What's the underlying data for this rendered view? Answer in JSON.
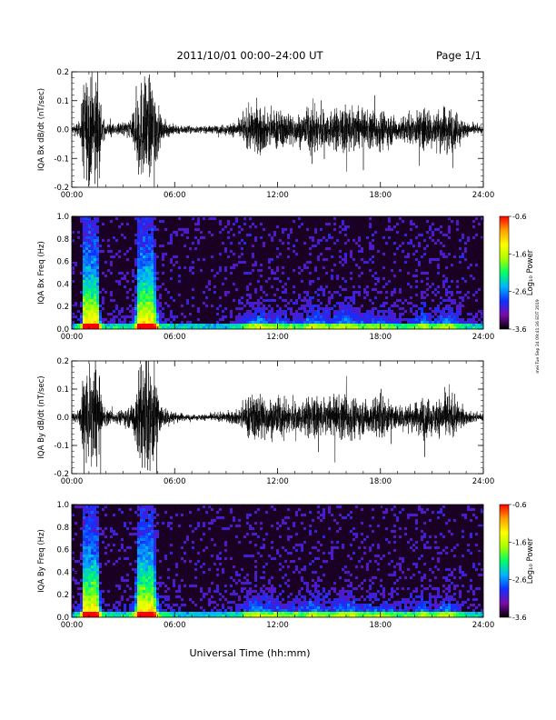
{
  "header": {
    "title": "2011/10/01   00:00–24:00 UT",
    "page": "Page 1/1"
  },
  "footer": {
    "xlabel": "Universal Time (hh:mm)",
    "side_note": "mei Tue Sep 24 09:41:36 EDT 2019"
  },
  "colors": {
    "trace": "#000000",
    "spectrum_background": "#1a0022",
    "colorbar": [
      "#000000",
      "#7a0aa8",
      "#1030ff",
      "#00b4ff",
      "#00ff64",
      "#aaff00",
      "#ffff00",
      "#ffa000",
      "#ff0000"
    ]
  },
  "chart_data": [
    {
      "type": "line",
      "ylabel": "IQA Bx dB/dt (nT/sec)",
      "x_ticks": [
        "00:00",
        "06:00",
        "12:00",
        "18:00",
        "24:00"
      ],
      "y_ticks": [
        "-0.2",
        "-0.1",
        "0.0",
        "0.1",
        "0.2"
      ],
      "xlim": [
        0,
        24
      ],
      "ylim": [
        -0.2,
        0.2
      ],
      "activity_envelope": {
        "hours": [
          0,
          0.5,
          0.7,
          1.0,
          1.5,
          1.8,
          2.5,
          3.5,
          3.9,
          4.2,
          4.8,
          5.2,
          6,
          7,
          8,
          9,
          9.8,
          10.3,
          11,
          11.5,
          12,
          12.5,
          13.5,
          14,
          15,
          16,
          17,
          18,
          19,
          20,
          20.5,
          21,
          22,
          23,
          24
        ],
        "amplitude": [
          0.02,
          0.05,
          0.3,
          0.3,
          0.3,
          0.05,
          0.03,
          0.06,
          0.3,
          0.3,
          0.3,
          0.06,
          0.03,
          0.02,
          0.02,
          0.03,
          0.05,
          0.12,
          0.15,
          0.1,
          0.12,
          0.1,
          0.09,
          0.15,
          0.1,
          0.15,
          0.1,
          0.12,
          0.07,
          0.08,
          0.15,
          0.09,
          0.15,
          0.04,
          0.02
        ]
      }
    },
    {
      "type": "heatmap",
      "ylabel": "IQA Bx Freq (Hz)",
      "x_ticks": [
        "00:00",
        "06:00",
        "12:00",
        "18:00",
        "24:00"
      ],
      "y_ticks": [
        "0.0",
        "0.2",
        "0.4",
        "0.6",
        "0.8",
        "1.0"
      ],
      "xlim": [
        0,
        24
      ],
      "ylim": [
        0,
        1.0
      ],
      "colorbar": {
        "label": "Log₁₀ Power",
        "ticks": [
          "-0.6",
          "-1.6",
          "-2.6",
          "-3.6"
        ],
        "range": [
          -3.6,
          -0.6
        ]
      }
    },
    {
      "type": "line",
      "ylabel": "IQA By dB/dt (nT/sec)",
      "x_ticks": [
        "00:00",
        "06:00",
        "12:00",
        "18:00",
        "24:00"
      ],
      "y_ticks": [
        "-0.2",
        "-0.1",
        "0.0",
        "0.1",
        "0.2"
      ],
      "xlim": [
        0,
        24
      ],
      "ylim": [
        -0.2,
        0.2
      ],
      "activity_envelope": {
        "hours": [
          0,
          0.5,
          0.7,
          1.0,
          1.5,
          1.8,
          2.5,
          3.5,
          3.9,
          4.2,
          4.8,
          5.2,
          6,
          7,
          8,
          9,
          9.8,
          10.3,
          11,
          11.5,
          12,
          12.5,
          13.5,
          14,
          15,
          16,
          17,
          18,
          19,
          20,
          20.5,
          21,
          22,
          23,
          24
        ],
        "amplitude": [
          0.02,
          0.06,
          0.3,
          0.3,
          0.3,
          0.06,
          0.03,
          0.07,
          0.3,
          0.3,
          0.3,
          0.07,
          0.03,
          0.015,
          0.02,
          0.03,
          0.05,
          0.13,
          0.15,
          0.11,
          0.12,
          0.1,
          0.09,
          0.14,
          0.1,
          0.14,
          0.1,
          0.12,
          0.07,
          0.08,
          0.14,
          0.09,
          0.14,
          0.04,
          0.02
        ]
      }
    },
    {
      "type": "heatmap",
      "ylabel": "IQA By Freq (Hz)",
      "x_ticks": [
        "00:00",
        "06:00",
        "12:00",
        "18:00",
        "24:00"
      ],
      "y_ticks": [
        "0.0",
        "0.2",
        "0.4",
        "0.6",
        "0.8",
        "1.0"
      ],
      "xlim": [
        0,
        24
      ],
      "ylim": [
        0,
        1.0
      ],
      "colorbar": {
        "label": "Log₁₀ Power",
        "ticks": [
          "-0.6",
          "-1.6",
          "-2.6",
          "-3.6"
        ],
        "range": [
          -3.6,
          -0.6
        ]
      }
    }
  ]
}
